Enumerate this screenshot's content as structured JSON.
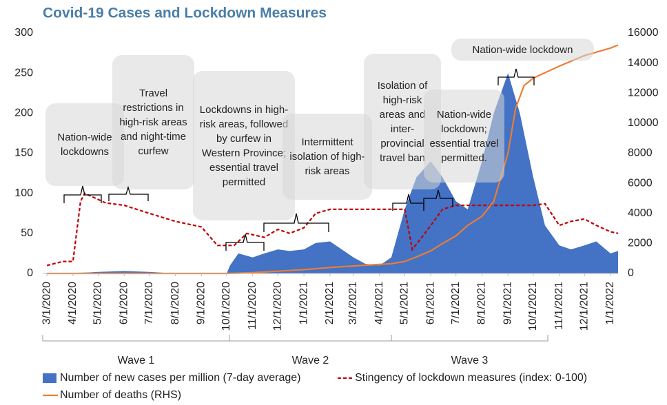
{
  "chart_data": {
    "type": "combo",
    "title": "Covid-19 Cases and Lockdown Measures",
    "xlim": [
      "2/25/2020",
      "1/10/2022"
    ],
    "xticks": [
      "3/1/2020",
      "4/1/2020",
      "5/1/2020",
      "6/1/2020",
      "7/1/2020",
      "8/1/2020",
      "9/1/2020",
      "10/1/2020",
      "11/1/2020",
      "12/1/2020",
      "1/1/2021",
      "2/1/2021",
      "3/1/2021",
      "4/1/2021",
      "5/1/2021",
      "6/1/2021",
      "7/1/2021",
      "8/1/2021",
      "9/1/2021",
      "10/1/2021",
      "11/1/2021",
      "12/1/2021",
      "1/1/2022"
    ],
    "ylim": [
      0,
      300
    ],
    "yticks": [
      0,
      50,
      100,
      150,
      200,
      250,
      300
    ],
    "y2lim": [
      0,
      16000
    ],
    "y2ticks": [
      0,
      2000,
      4000,
      6000,
      8000,
      10000,
      12000,
      14000,
      16000
    ],
    "series": [
      {
        "name": "Number of new cases per million (7-day average)",
        "color": "#4472c4",
        "style": "area",
        "x": [
          "3/1/2020",
          "4/15/2020",
          "5/1/2020",
          "6/1/2020",
          "7/1/2020",
          "8/1/2020",
          "9/1/2020",
          "10/1/2020",
          "10/5/2020",
          "10/15/2020",
          "11/1/2020",
          "11/15/2020",
          "12/1/2020",
          "12/15/2020",
          "1/1/2021",
          "1/15/2021",
          "2/1/2021",
          "2/15/2021",
          "3/1/2021",
          "3/15/2021",
          "4/1/2021",
          "4/15/2021",
          "5/1/2021",
          "5/15/2021",
          "6/1/2021",
          "6/15/2021",
          "7/1/2021",
          "7/15/2021",
          "8/1/2021",
          "8/15/2021",
          "9/1/2021",
          "9/15/2021",
          "10/1/2021",
          "10/15/2021",
          "11/1/2021",
          "11/15/2021",
          "12/1/2021",
          "12/15/2021",
          "1/1/2022",
          "1/10/2022"
        ],
        "values": [
          0,
          1,
          2,
          3,
          2,
          0,
          0,
          0,
          10,
          25,
          20,
          25,
          30,
          28,
          30,
          38,
          40,
          30,
          20,
          12,
          10,
          20,
          80,
          120,
          140,
          120,
          90,
          80,
          140,
          200,
          250,
          200,
          120,
          60,
          35,
          30,
          35,
          40,
          25,
          28
        ]
      },
      {
        "name": "Stingency of lockdown measures (index: 0-100)",
        "color": "#c00000",
        "style": "dashed",
        "x": [
          "3/1/2020",
          "3/20/2020",
          "4/1/2020",
          "4/10/2020",
          "4/15/2020",
          "5/10/2020",
          "6/1/2020",
          "7/1/2020",
          "8/1/2020",
          "9/1/2020",
          "9/20/2020",
          "10/10/2020",
          "10/25/2020",
          "11/15/2020",
          "12/1/2020",
          "12/15/2020",
          "1/1/2021",
          "1/15/2021",
          "2/1/2021",
          "3/1/2021",
          "4/1/2021",
          "5/1/2021",
          "5/10/2021",
          "5/25/2021",
          "6/1/2021",
          "6/15/2021",
          "7/1/2021",
          "8/1/2021",
          "9/1/2021",
          "10/1/2021",
          "10/15/2021",
          "11/1/2021",
          "11/15/2021",
          "12/1/2021",
          "12/15/2021",
          "1/1/2022",
          "1/10/2022"
        ],
        "values": [
          10,
          15,
          15,
          90,
          100,
          88,
          85,
          75,
          65,
          58,
          35,
          35,
          50,
          45,
          55,
          50,
          57,
          75,
          80,
          80,
          80,
          80,
          30,
          50,
          60,
          80,
          85,
          85,
          85,
          85,
          87,
          60,
          65,
          68,
          60,
          52,
          50
        ]
      },
      {
        "name": "Number of deaths (RHS)",
        "color": "#ed7d31",
        "style": "line",
        "axis": "y2",
        "x": [
          "3/1/2020",
          "10/1/2020",
          "10/15/2020",
          "11/1/2020",
          "12/1/2020",
          "1/1/2021",
          "2/1/2021",
          "3/1/2021",
          "4/1/2021",
          "4/15/2021",
          "5/1/2021",
          "5/15/2021",
          "6/1/2021",
          "6/15/2021",
          "7/1/2021",
          "7/15/2021",
          "8/1/2021",
          "8/15/2021",
          "9/1/2021",
          "9/10/2021",
          "9/20/2021",
          "10/1/2021",
          "11/1/2021",
          "12/1/2021",
          "1/1/2022",
          "1/10/2022"
        ],
        "values": [
          0,
          0,
          20,
          50,
          150,
          250,
          400,
          500,
          600,
          650,
          800,
          1100,
          1500,
          2000,
          2500,
          3200,
          3800,
          4800,
          8000,
          11000,
          12500,
          13000,
          13800,
          14500,
          15000,
          15200
        ]
      }
    ],
    "annotations": [
      "Nation-wide lockdowns",
      "Travel restrictions in high-risk areas and night-time curfew",
      "Lockdowns in high-risk areas, followed by curfew in Western Province; essential travel permitted",
      "Intermittent isolation of high-risk areas",
      "Isolation of high-risk areas and inter-provincial travel ban",
      "Nation-wide lockdown; essential travel permitted.",
      "Nation-wide lockdown"
    ],
    "waves": [
      "Wave 1",
      "Wave 2",
      "Wave 3"
    ]
  }
}
